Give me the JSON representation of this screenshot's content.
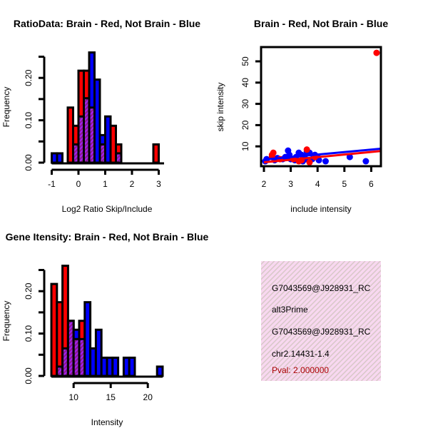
{
  "chart_data": [
    {
      "type": "bar",
      "title": "RatioData: Brain - Red, Not Brain - Blue",
      "xlabel": "Log2 Ratio Skip/Include",
      "ylabel": "Frequency",
      "xlim": [
        -1,
        3.2
      ],
      "ylim": [
        0,
        0.25
      ],
      "bin_start": -1,
      "bin_width": 0.2,
      "xticks": [
        "-1",
        "0",
        "1",
        "2",
        "3"
      ],
      "xtick_values": [
        -1,
        0,
        1,
        2,
        3
      ],
      "yticks": [
        "0.00",
        "0.10",
        "0.20"
      ],
      "ytick_values": [
        0,
        0.05,
        0.1,
        0.15,
        0.2,
        0.25
      ],
      "series": [
        {
          "name": "Brain",
          "color": "#ff0000",
          "values": [
            0,
            0,
            0,
            0.13,
            0.087,
            0.217,
            0.217,
            0.13,
            0,
            0.043,
            0,
            0.087,
            0.043,
            0,
            0,
            0,
            0,
            0,
            0,
            0.043
          ]
        },
        {
          "name": "Not Brain",
          "color": "#0000ff",
          "values": [
            0.022,
            0.022,
            0,
            0,
            0.043,
            0.109,
            0.152,
            0.26,
            0.196,
            0.065,
            0.109,
            0,
            0.022,
            0,
            0,
            0,
            0,
            0,
            0,
            0
          ]
        }
      ]
    },
    {
      "type": "scatter",
      "title": "Brain - Red, Not Brain - Blue",
      "xlabel": "include intensity",
      "ylabel": "skip intensity",
      "xlim": [
        1.9,
        6.35
      ],
      "ylim": [
        1,
        56
      ],
      "xticks": [
        "2",
        "3",
        "4",
        "5",
        "6"
      ],
      "xtick_values": [
        2,
        3,
        4,
        5,
        6
      ],
      "yticks": [
        "10",
        "20",
        "30",
        "40",
        "50"
      ],
      "ytick_values": [
        10,
        20,
        30,
        40,
        50
      ],
      "series": [
        {
          "name": "Brain",
          "color": "#ff0000",
          "points": [
            [
              2.3,
              6
            ],
            [
              2.35,
              7
            ],
            [
              2.3,
              5
            ],
            [
              3.6,
              8.5
            ],
            [
              3.7,
              2.5
            ],
            [
              3.4,
              3.5
            ],
            [
              3.1,
              4
            ],
            [
              3.9,
              5
            ],
            [
              6.2,
              54
            ],
            [
              2.6,
              4
            ],
            [
              3.3,
              3
            ]
          ],
          "fit": [
            [
              2,
              2.5
            ],
            [
              6.35,
              7.8
            ]
          ]
        },
        {
          "name": "Not Brain",
          "color": "#0000ff",
          "points": [
            [
              2.1,
              4
            ],
            [
              2.05,
              3
            ],
            [
              2.5,
              4.5
            ],
            [
              2.7,
              4
            ],
            [
              2.8,
              5
            ],
            [
              2.9,
              8
            ],
            [
              2.95,
              6
            ],
            [
              3.0,
              4
            ],
            [
              3.2,
              5
            ],
            [
              3.3,
              7
            ],
            [
              3.4,
              6
            ],
            [
              3.5,
              5
            ],
            [
              3.6,
              7.5
            ],
            [
              3.7,
              7
            ],
            [
              3.8,
              4
            ],
            [
              3.9,
              6
            ],
            [
              4.0,
              5
            ],
            [
              3.55,
              4
            ],
            [
              3.15,
              3.5
            ],
            [
              4.3,
              3
            ],
            [
              5.2,
              5
            ],
            [
              5.8,
              3
            ],
            [
              2.4,
              3.5
            ],
            [
              3.45,
              3
            ],
            [
              4.05,
              3.5
            ]
          ],
          "fit": [
            [
              2,
              3.8
            ],
            [
              6.35,
              8.9
            ]
          ]
        }
      ]
    },
    {
      "type": "bar",
      "title": "Gene Itensity: Brain - Red, Not Brain - Blue",
      "xlabel": "Intensity",
      "ylabel": "Frequency",
      "xlim": [
        7,
        22
      ],
      "ylim": [
        0,
        0.25
      ],
      "bin_start": 7,
      "bin_width": 0.75,
      "xticks": [
        "10",
        "15",
        "20"
      ],
      "xtick_values": [
        10,
        15,
        20
      ],
      "yticks": [
        "0.00",
        "0.10",
        "0.20"
      ],
      "ytick_values": [
        0,
        0.05,
        0.1,
        0.15,
        0.2,
        0.25
      ],
      "series": [
        {
          "name": "Brain",
          "color": "#ff0000",
          "values": [
            0.217,
            0.174,
            0.26,
            0.13,
            0.087,
            0.13,
            0,
            0,
            0,
            0,
            0,
            0,
            0,
            0,
            0,
            0,
            0,
            0,
            0,
            0
          ]
        },
        {
          "name": "Not Brain",
          "color": "#0000ff",
          "values": [
            0,
            0.022,
            0.065,
            0.13,
            0.109,
            0.087,
            0.174,
            0.065,
            0.109,
            0.043,
            0.043,
            0.043,
            0,
            0.043,
            0.043,
            0,
            0,
            0,
            0,
            0.022
          ]
        }
      ]
    }
  ],
  "info": {
    "line1": "G7043569@J928931_RC",
    "line2": "alt3Prime",
    "line3": "G7043569@J928931_RC",
    "line4": "chr2.14431-1.4",
    "pval": "Pval: 2.000000",
    "pval_color": "#aa0000"
  }
}
